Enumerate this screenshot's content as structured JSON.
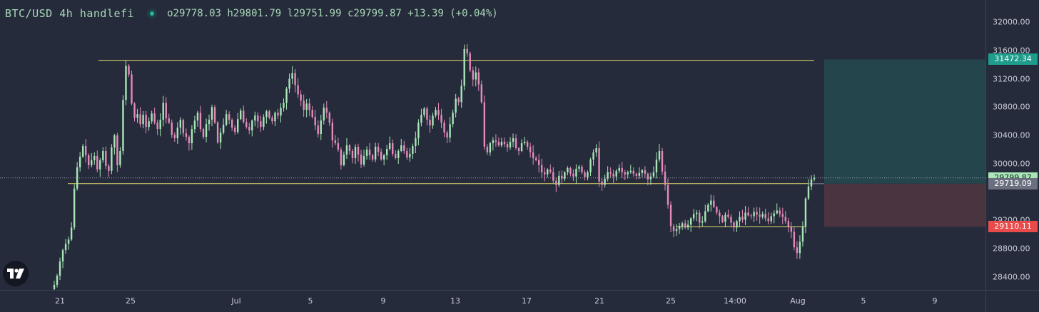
{
  "header": {
    "symbol_title": "BTC/USD 4h handlefi",
    "ohlc": "o29778.03 h29801.79 l29751.99 c29799.87 +13.39 (+0.04%)"
  },
  "colors": {
    "background": "#252b3b",
    "up": "#a8e6b6",
    "down": "#e58bb9",
    "level_line": "#e8e06a",
    "target_zone": "#24454c",
    "stop_zone": "#4a3440",
    "last_price_label": "#a8e6b6",
    "entry_label": "#6b7080",
    "stop_label": "#e94b4b",
    "target_label": "#1e9c8c"
  },
  "price_axis": {
    "ticks": [
      "32000.00",
      "31600.00",
      "31200.00",
      "30800.00",
      "30400.00",
      "30000.00",
      "29200.00",
      "28800.00",
      "28400.00"
    ],
    "labels": {
      "target": "31472.34",
      "last": "29799.87",
      "entry": "29719.09",
      "stop": "29110.11"
    }
  },
  "time_axis": {
    "ticks": [
      "21",
      "25",
      "Jul",
      "5",
      "9",
      "13",
      "17",
      "21",
      "25",
      "14:00",
      "Aug",
      "5",
      "9"
    ]
  },
  "logo": {
    "icon": "tradingview-logo-icon"
  },
  "chart_data": {
    "type": "candlestick",
    "title": "BTC/USD 4h handlefi",
    "ylim": [
      28250,
      32150
    ],
    "x_ticks": [
      "21",
      "25",
      "Jul",
      "5",
      "9",
      "13",
      "17",
      "21",
      "25",
      "14:00",
      "Aug",
      "5",
      "9"
    ],
    "levels": {
      "resistance": 31460,
      "support": 29720,
      "range_low": 29110,
      "last_price": 29799.87
    },
    "position": {
      "entry": 29719.09,
      "target": 31472.34,
      "stop": 29110.11
    },
    "candle_closes": [
      28290,
      28420,
      28620,
      28780,
      28870,
      28930,
      29100,
      29650,
      29950,
      30100,
      30250,
      30120,
      29980,
      30050,
      30110,
      29920,
      30050,
      30180,
      29970,
      29900,
      30230,
      30400,
      29980,
      30180,
      30900,
      31380,
      31260,
      30850,
      30650,
      30700,
      30560,
      30690,
      30520,
      30600,
      30710,
      30580,
      30490,
      30620,
      30860,
      30640,
      30580,
      30410,
      30360,
      30510,
      30620,
      30430,
      30380,
      30290,
      30490,
      30610,
      30720,
      30490,
      30380,
      30560,
      30620,
      30800,
      30580,
      30300,
      30440,
      30550,
      30700,
      30620,
      30510,
      30450,
      30630,
      30750,
      30590,
      30520,
      30470,
      30610,
      30680,
      30600,
      30520,
      30660,
      30740,
      30650,
      30600,
      30720,
      30680,
      30790,
      30860,
      31060,
      31200,
      31280,
      31110,
      30980,
      30890,
      30760,
      30850,
      30760,
      30660,
      30540,
      30420,
      30610,
      30790,
      30720,
      30580,
      30330,
      30290,
      30200,
      29980,
      30130,
      30260,
      30180,
      30080,
      30240,
      30130,
      29990,
      30110,
      30200,
      30120,
      30060,
      30240,
      30170,
      30060,
      30120,
      30210,
      30290,
      30140,
      30080,
      30180,
      30260,
      30180,
      30090,
      30140,
      30250,
      30360,
      30580,
      30690,
      30780,
      30620,
      30540,
      30680,
      30760,
      30690,
      30580,
      30440,
      30370,
      30560,
      30720,
      30920,
      30870,
      31100,
      31620,
      31560,
      31320,
      31190,
      31290,
      31120,
      30870,
      30240,
      30160,
      30290,
      30330,
      30310,
      30260,
      30310,
      30280,
      30230,
      30310,
      30360,
      30220,
      30180,
      30290,
      30310,
      30240,
      30160,
      30080,
      30050,
      29980,
      29880,
      29850,
      29920,
      29880,
      29760,
      29700,
      29830,
      29790,
      29880,
      29940,
      29860,
      29820,
      29930,
      29960,
      29880,
      29810,
      29880,
      30060,
      30160,
      30220,
      29750,
      29700,
      29790,
      29880,
      29860,
      29820,
      29900,
      29940,
      29880,
      29850,
      29880,
      29900,
      29860,
      29830,
      29870,
      29910,
      29860,
      29780,
      29820,
      29880,
      30060,
      30180,
      29890,
      29700,
      29420,
      29120,
      29050,
      29080,
      29120,
      29160,
      29100,
      29140,
      29230,
      29290,
      29310,
      29170,
      29190,
      29330,
      29420,
      29480,
      29390,
      29310,
      29260,
      29180,
      29280,
      29250,
      29170,
      29100,
      29190,
      29250,
      29210,
      29310,
      29270,
      29260,
      29320,
      29280,
      29250,
      29290,
      29230,
      29190,
      29260,
      29300,
      29340,
      29290,
      29250,
      29190,
      29110,
      29040,
      28820,
      28740,
      28900,
      29110,
      29510,
      29680,
      29780,
      29800
    ]
  }
}
